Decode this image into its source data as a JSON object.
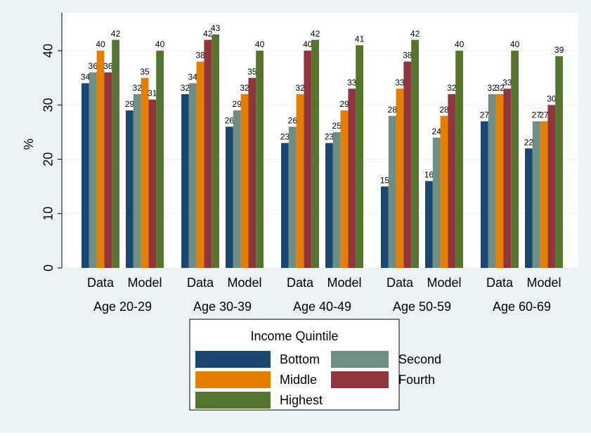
{
  "chart_data": {
    "type": "bar",
    "y_label": "%",
    "groups": [
      "Age 20-29",
      "Age 30-39",
      "Age 40-49",
      "Age 50-59",
      "Age 60-69"
    ],
    "categories": [
      "Data",
      "Model",
      "Data",
      "Model",
      "Data",
      "Model",
      "Data",
      "Model",
      "Data",
      "Model"
    ],
    "series": [
      {
        "name": "Bottom",
        "color": "#1a476f",
        "values": [
          34,
          29,
          32,
          26,
          23,
          23,
          15,
          16,
          27,
          22
        ]
      },
      {
        "name": "Second",
        "color": "#6e8e84",
        "values": [
          36,
          32,
          34,
          29,
          26,
          25,
          28,
          24,
          32,
          27
        ]
      },
      {
        "name": "Middle",
        "color": "#e37e00",
        "values": [
          40,
          35,
          38,
          32,
          32,
          29,
          33,
          28,
          32,
          27
        ]
      },
      {
        "name": "Fourth",
        "color": "#90353b",
        "values": [
          36,
          31,
          42,
          35,
          40,
          33,
          38,
          32,
          33,
          30
        ]
      },
      {
        "name": "Highest",
        "color": "#55752f",
        "values": [
          42,
          40,
          43,
          40,
          42,
          41,
          42,
          40,
          40,
          39
        ]
      }
    ],
    "legend_title": "Income Quintile",
    "legend_position": "bottom",
    "ylim": [
      0,
      47
    ],
    "yticks": [
      0,
      10,
      20,
      30,
      40
    ],
    "grid": true
  }
}
